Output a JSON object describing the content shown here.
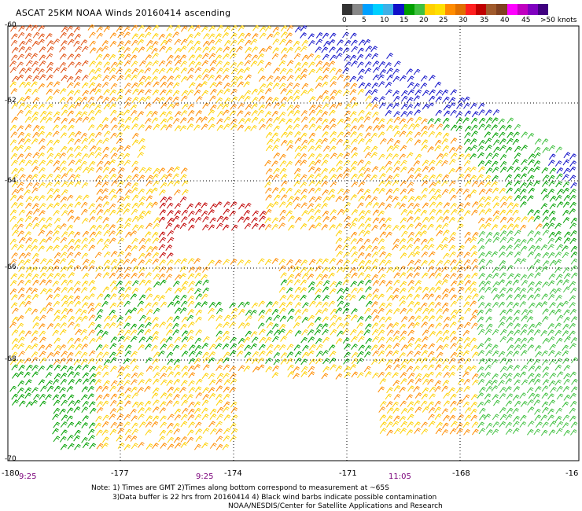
{
  "title": "ASCAT 25KM NOAA Winds 20160414 ascending",
  "legend": {
    "colors": [
      "#333333",
      "#888888",
      "#00a0ff",
      "#00d0ff",
      "#3fb0e6",
      "#1010c8",
      "#00a000",
      "#40c040",
      "#ffd000",
      "#ffe000",
      "#ff8c00",
      "#e07000",
      "#ff2020",
      "#c00000",
      "#a05a2c",
      "#804020",
      "#ff00ff",
      "#c000c0",
      "#8000c0",
      "#400080"
    ],
    "labels": [
      "0",
      "5",
      "10",
      "15",
      "20",
      "25",
      "30",
      "35",
      "40",
      "45",
      ">50 knots"
    ]
  },
  "axes": {
    "y_labels": [
      "-60",
      "-62",
      "-64",
      "-66",
      "-68",
      "-70"
    ],
    "x_labels": [
      "-180",
      "-177",
      "-174",
      "-171",
      "-168",
      "-16"
    ],
    "time_labels": [
      "9:25",
      "9:25",
      "11:05"
    ]
  },
  "notes": [
    "Note: 1) Times are GMT 2)Times along bottom correspond to measurement at ~65S",
    "3)Data buffer is 22 hrs from 20160414 4) Black wind barbs indicate possible contamination",
    "NOAA/NESDIS/Center for Satellite Applications and Research"
  ]
}
